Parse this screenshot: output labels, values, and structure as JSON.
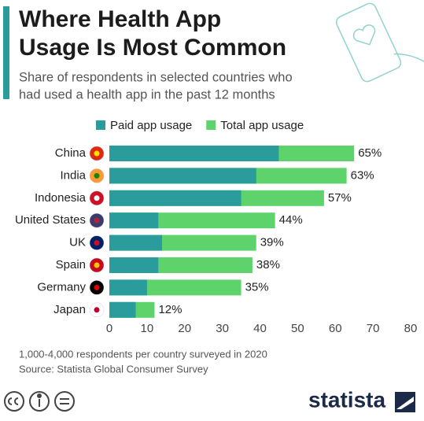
{
  "chart_data": {
    "type": "bar",
    "orientation": "horizontal",
    "overlap": true,
    "title": "Where Health App Usage Is Most Common",
    "subtitle": "Share of respondents in selected countries who had used a health app in the past 12 months",
    "categories": [
      "China",
      "India",
      "Indonesia",
      "United States",
      "UK",
      "Spain",
      "Germany",
      "Japan"
    ],
    "series": [
      {
        "name": "Paid app usage",
        "color": "#2a9c9b",
        "values": [
          45,
          39,
          35,
          13,
          14,
          13,
          10,
          7
        ]
      },
      {
        "name": "Total app usage",
        "color": "#5fd36b",
        "values": [
          65,
          63,
          57,
          44,
          39,
          38,
          35,
          12
        ],
        "value_labels": [
          "65%",
          "63%",
          "57%",
          "44%",
          "39%",
          "38%",
          "35%",
          "12%"
        ]
      }
    ],
    "xlim": [
      0,
      80
    ],
    "xticks": [
      0,
      10,
      20,
      30,
      40,
      50,
      60,
      70,
      80
    ],
    "grid": false,
    "legend": "top",
    "note": "1,000-4,000 respondents per country surveyed in 2020",
    "source": "Source: Statista Global Consumer Survey",
    "logo": "statista"
  }
}
